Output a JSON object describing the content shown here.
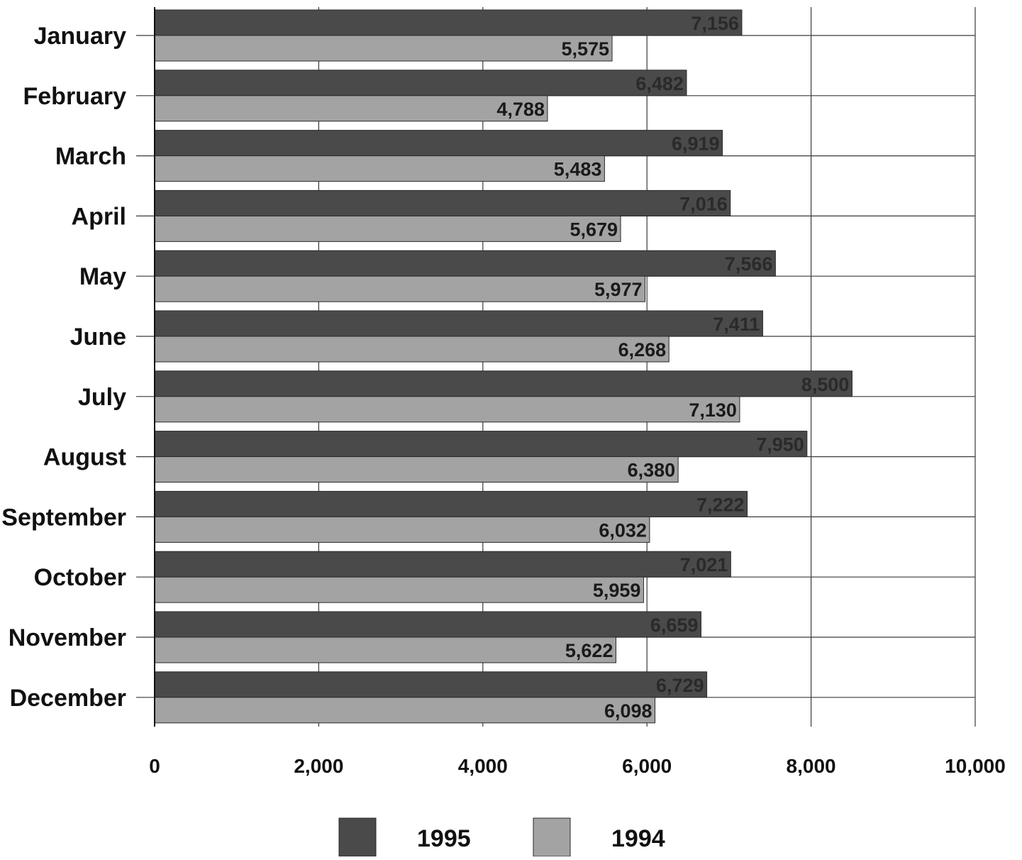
{
  "chart_data": {
    "type": "bar",
    "orientation": "horizontal",
    "categories": [
      "January",
      "February",
      "March",
      "April",
      "May",
      "June",
      "July",
      "August",
      "September",
      "October",
      "November",
      "December"
    ],
    "series": [
      {
        "name": "1995",
        "color": "#4a4a4a",
        "values": [
          7156,
          6482,
          6919,
          7016,
          7566,
          7411,
          8500,
          7950,
          7222,
          7021,
          6659,
          6729
        ],
        "labels": [
          "7,156",
          "6,482",
          "6,919",
          "7,016",
          "7,566",
          "7,411",
          "8,500",
          "7,950",
          "7,222",
          "7,021",
          "6,659",
          "6,729"
        ]
      },
      {
        "name": "1994",
        "color": "#a3a3a3",
        "values": [
          5575,
          4788,
          5483,
          5679,
          5977,
          6268,
          7130,
          6380,
          6032,
          5959,
          5622,
          6098
        ],
        "labels": [
          "5,575",
          "4,788",
          "5,483",
          "5,679",
          "5,977",
          "6,268",
          "7,130",
          "6,380",
          "6,032",
          "5,959",
          "5,622",
          "6,098"
        ]
      }
    ],
    "xlim": [
      0,
      10000
    ],
    "xticks": [
      0,
      2000,
      4000,
      6000,
      8000,
      10000
    ],
    "xtick_labels": [
      "0",
      "2,000",
      "4,000",
      "6,000",
      "8,000",
      "10,000"
    ],
    "grid": true,
    "legend_position": "bottom-center",
    "title": "",
    "xlabel": "",
    "ylabel": ""
  }
}
